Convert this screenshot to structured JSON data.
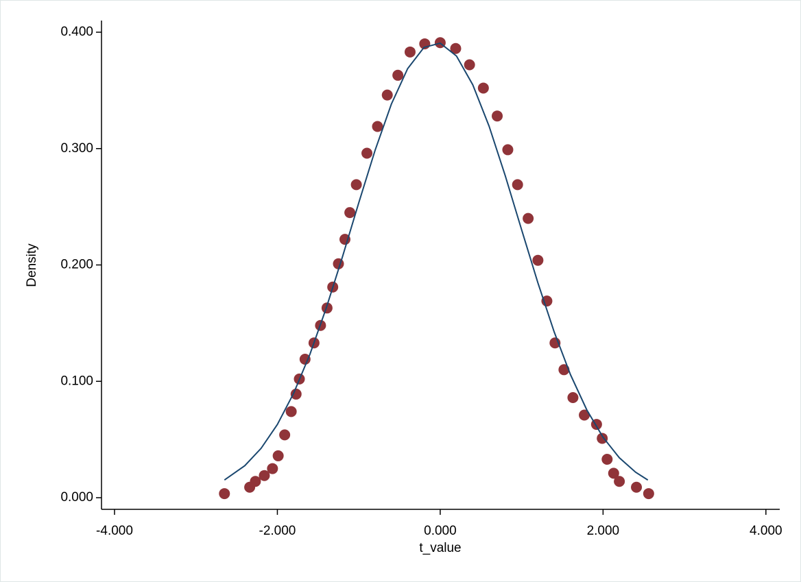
{
  "chart_data": {
    "type": "scatter",
    "xlabel": "t_value",
    "ylabel": "Density",
    "xlim": [
      -4.16,
      4.17
    ],
    "ylim": [
      -0.01,
      0.41
    ],
    "xticks": [
      {
        "value": -4,
        "label": "-4.000"
      },
      {
        "value": -2,
        "label": "-2.000"
      },
      {
        "value": 0,
        "label": "0.000"
      },
      {
        "value": 2,
        "label": "2.000"
      },
      {
        "value": 4,
        "label": "4.000"
      }
    ],
    "yticks": [
      {
        "value": 0,
        "label": "0.000"
      },
      {
        "value": 0.1,
        "label": "0.100"
      },
      {
        "value": 0.2,
        "label": "0.200"
      },
      {
        "value": 0.3,
        "label": "0.300"
      },
      {
        "value": 0.4,
        "label": "0.400"
      }
    ],
    "series": [
      {
        "mode": "markers",
        "color": "#903439",
        "x": [
          -2.65,
          -2.34,
          -2.27,
          -2.16,
          -2.06,
          -1.99,
          -1.91,
          -1.83,
          -1.77,
          -1.73,
          -1.66,
          -1.55,
          -1.47,
          -1.39,
          -1.32,
          -1.25,
          -1.17,
          -1.11,
          -1.03,
          -0.9,
          -0.77,
          -0.65,
          -0.52,
          -0.37,
          -0.19,
          0.0,
          0.19,
          0.36,
          0.53,
          0.7,
          0.83,
          0.95,
          1.08,
          1.2,
          1.31,
          1.41,
          1.52,
          1.63,
          1.77,
          1.92,
          1.99,
          2.05,
          2.13,
          2.2,
          2.41,
          2.56
        ],
        "values": [
          0.0035,
          0.009,
          0.014,
          0.019,
          0.025,
          0.036,
          0.054,
          0.074,
          0.089,
          0.102,
          0.119,
          0.133,
          0.148,
          0.163,
          0.181,
          0.201,
          0.222,
          0.245,
          0.269,
          0.296,
          0.319,
          0.346,
          0.363,
          0.383,
          0.39,
          0.391,
          0.386,
          0.372,
          0.352,
          0.328,
          0.299,
          0.269,
          0.24,
          0.204,
          0.169,
          0.133,
          0.11,
          0.086,
          0.071,
          0.063,
          0.051,
          0.033,
          0.021,
          0.014,
          0.009,
          0.0035
        ]
      },
      {
        "mode": "line",
        "color": "#1a476f",
        "x": [
          -2.65,
          -2.4,
          -2.2,
          -2.0,
          -1.8,
          -1.6,
          -1.4,
          -1.2,
          -1.0,
          -0.8,
          -0.6,
          -0.4,
          -0.2,
          0.0,
          0.2,
          0.4,
          0.6,
          0.8,
          1.0,
          1.2,
          1.4,
          1.6,
          1.8,
          2.0,
          2.2,
          2.4,
          2.55
        ],
        "values": [
          0.0152,
          0.0275,
          0.0424,
          0.0629,
          0.0898,
          0.1233,
          0.1629,
          0.2071,
          0.2535,
          0.2985,
          0.3382,
          0.3687,
          0.3869,
          0.3906,
          0.3795,
          0.3548,
          0.3193,
          0.2764,
          0.2302,
          0.1846,
          0.1424,
          0.1057,
          0.0755,
          0.0519,
          0.0343,
          0.0219,
          0.0152
        ]
      }
    ]
  }
}
